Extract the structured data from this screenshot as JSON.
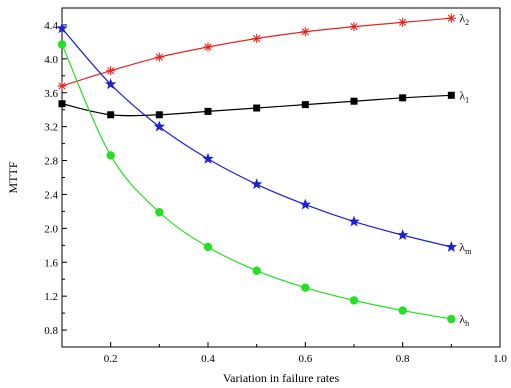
{
  "chart_data": {
    "type": "line",
    "xlabel": "Variation in failure rates",
    "ylabel": "MTTF",
    "xlim": [
      0.1,
      1.0
    ],
    "ylim": [
      0.6,
      4.6
    ],
    "xticks": [
      0.2,
      0.4,
      0.6,
      0.8,
      1.0
    ],
    "xtick_labels": [
      "0.2",
      "0.4",
      "0.6",
      "0.8",
      "1.0"
    ],
    "yticks": [
      0.8,
      1.2,
      1.6,
      2.0,
      2.4,
      2.8,
      3.2,
      3.6,
      4.0,
      4.4
    ],
    "ytick_labels": [
      "0.8",
      "1.2",
      "1.6",
      "2.0",
      "2.4",
      "2.8",
      "3.2",
      "3.6",
      "4.0",
      "4.4"
    ],
    "grid": false,
    "legend": "inline labels at right end of each line",
    "x": [
      0.1,
      0.2,
      0.3,
      0.4,
      0.5,
      0.6,
      0.7,
      0.8,
      0.9
    ],
    "series": [
      {
        "name_main": "λ",
        "name_sub": "2",
        "color": "#e8231f",
        "marker": "asterisk",
        "values": [
          3.68,
          3.86,
          4.02,
          4.14,
          4.24,
          4.32,
          4.38,
          4.43,
          4.48
        ]
      },
      {
        "name_main": "λ",
        "name_sub": "1",
        "color": "#000000",
        "marker": "square",
        "values": [
          3.47,
          3.34,
          3.34,
          3.38,
          3.42,
          3.46,
          3.5,
          3.54,
          3.57
        ]
      },
      {
        "name_main": "λ",
        "name_sub": "m",
        "color": "#1f1fd6",
        "marker": "star",
        "values": [
          4.36,
          3.7,
          3.2,
          2.82,
          2.52,
          2.28,
          2.08,
          1.92,
          1.78
        ]
      },
      {
        "name_main": "λ",
        "name_sub": "h",
        "color": "#22e022",
        "marker": "circle",
        "values": [
          4.17,
          2.86,
          2.19,
          1.78,
          1.5,
          1.3,
          1.15,
          1.03,
          0.93
        ]
      }
    ]
  }
}
